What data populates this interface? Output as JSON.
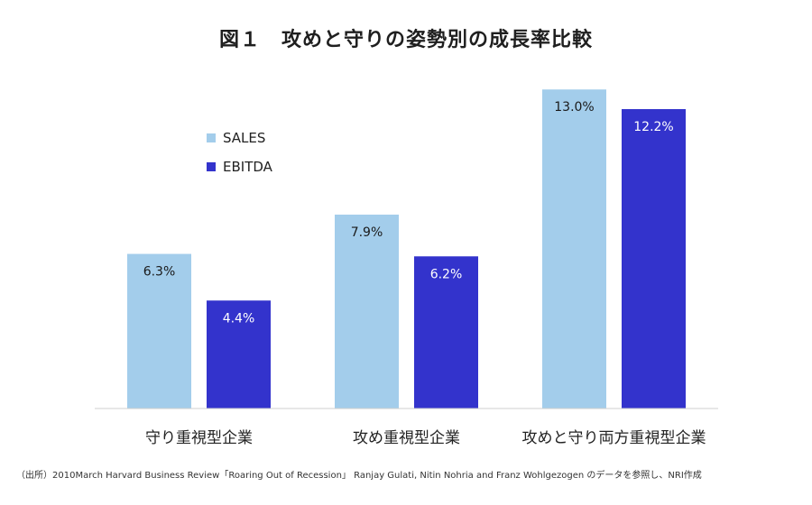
{
  "title": "図１　攻めと守りの姿勢別の成長率比較",
  "source": "（出所）2010March Harvard Business Review「Roaring Out of Recession」 Ranjay Gulati, Nitin Nohria and Franz Wohlgezogen のデータを参照し、NRI作成",
  "chart_data": {
    "type": "bar",
    "categories": [
      "守り重視型企業",
      "攻め重視型企業",
      "攻めと守り両方重視型企業"
    ],
    "series": [
      {
        "name": "SALES",
        "values": [
          6.3,
          7.9,
          13.0
        ],
        "labels": [
          "6.3%",
          "7.9%",
          "13.0%"
        ],
        "color": "#a3cdeb",
        "label_color": "#1a1a1a"
      },
      {
        "name": "EBITDA",
        "values": [
          4.4,
          6.2,
          12.2
        ],
        "labels": [
          "4.4%",
          "6.2%",
          "12.2%"
        ],
        "color": "#3333cc",
        "label_color": "#ffffff"
      }
    ],
    "ylim": [
      0,
      14
    ],
    "grid": false,
    "legend_position": "top-left"
  }
}
